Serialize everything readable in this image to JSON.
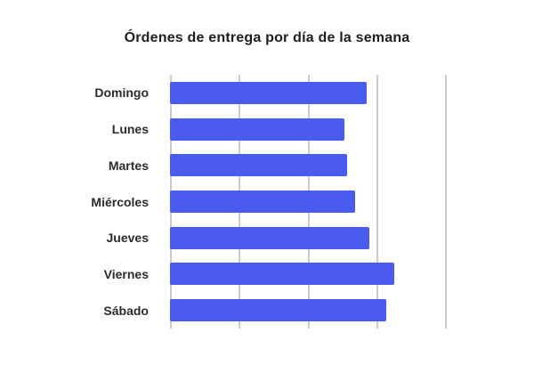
{
  "chart_data": {
    "type": "bar",
    "orientation": "horizontal",
    "title": "Órdenes de entrega por día de la semana",
    "categories": [
      "Domingo",
      "Lunes",
      "Martes",
      "Miércoles",
      "Jueves",
      "Viernes",
      "Sábado"
    ],
    "values": [
      71,
      63,
      64,
      67,
      72,
      81,
      78
    ],
    "xlabel": "",
    "ylabel": "",
    "xlim": [
      0,
      100
    ],
    "gridline_positions": [
      0,
      25,
      50,
      75,
      100
    ],
    "grid": "vertical-only",
    "legend": "none",
    "bar_color": "#4a5cf0",
    "gridline_color": "#cccccc",
    "background_color": "#ffffff",
    "title_color": "#1f1f1f",
    "label_color": "#2b2b2b"
  }
}
